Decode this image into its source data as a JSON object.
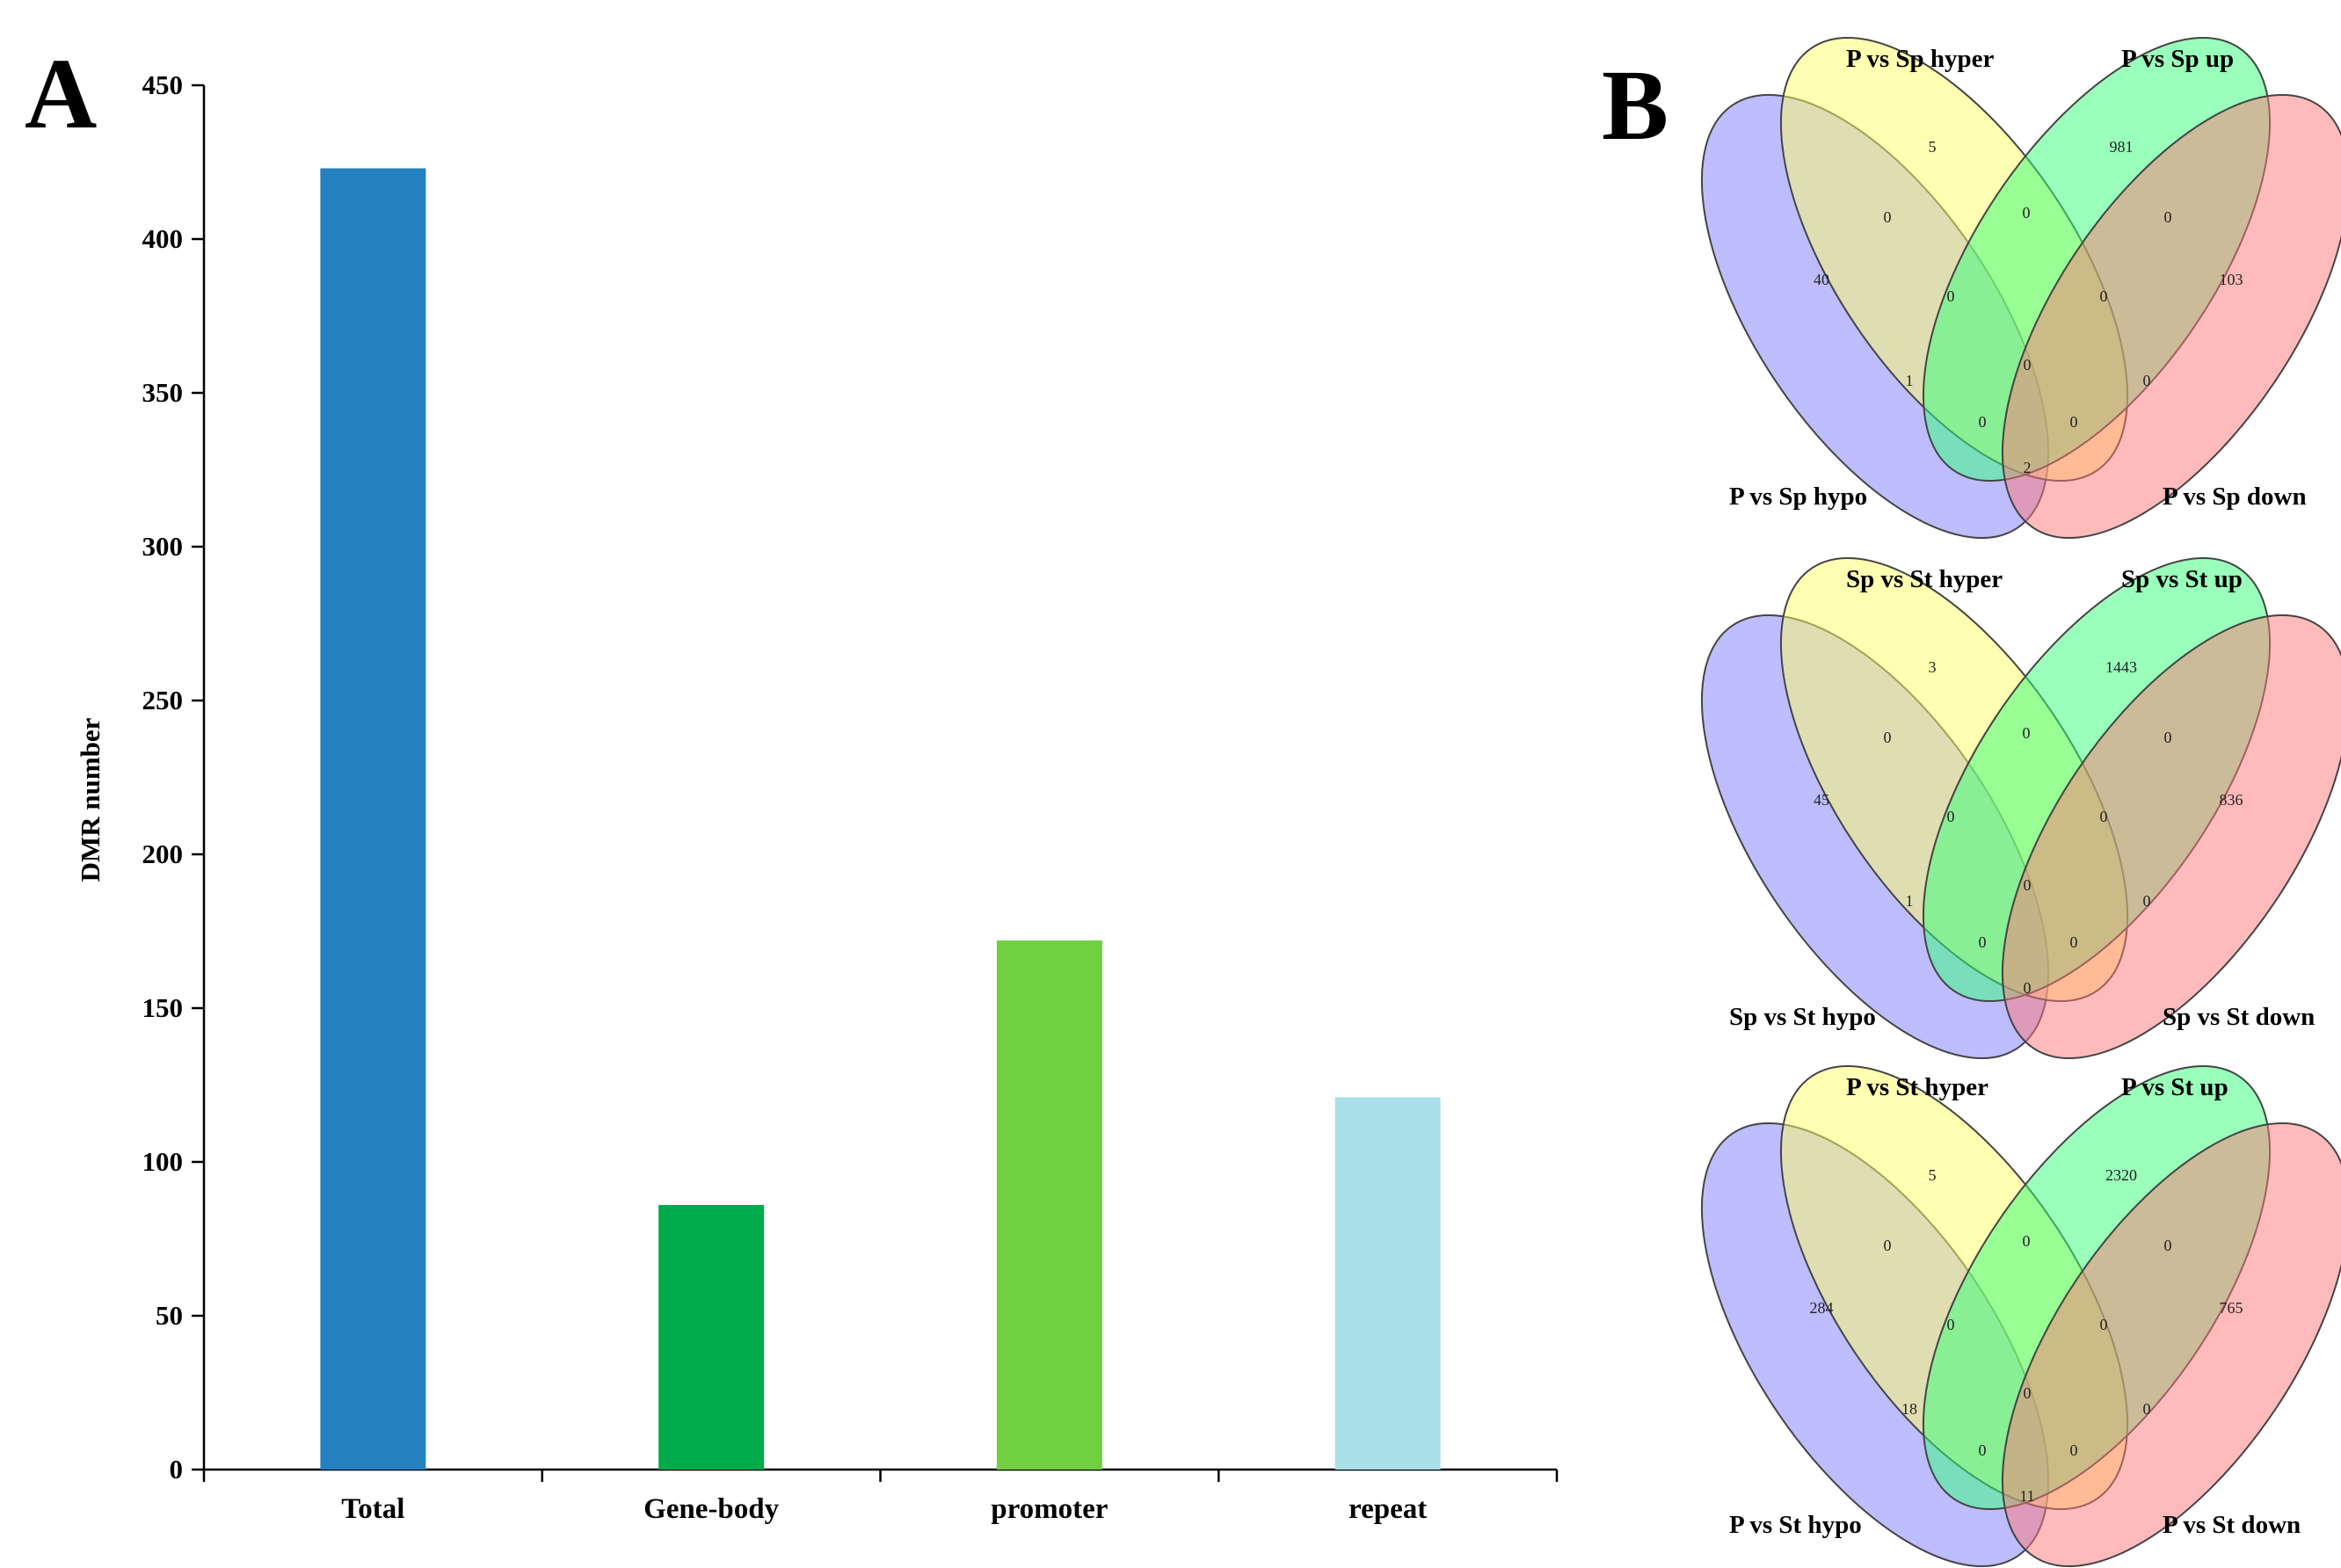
{
  "panels": {
    "a_label": "A",
    "b_label": "B"
  },
  "chart_data": {
    "type": "bar",
    "title": "",
    "xlabel": "",
    "ylabel": "DMR number",
    "ylim": [
      0,
      450
    ],
    "yticks": [
      0,
      50,
      100,
      150,
      200,
      250,
      300,
      350,
      400,
      450
    ],
    "categories": [
      "Total",
      "Gene-body",
      "promoter",
      "repeat"
    ],
    "values": [
      423,
      86,
      172,
      121
    ],
    "colors": [
      "#2480c1",
      "#00ab4b",
      "#70d040",
      "#a8dfe9"
    ]
  },
  "venn": {
    "colors": [
      "#7b7bff",
      "#ffff66",
      "#33ff77",
      "#ff7777"
    ],
    "diagrams": [
      {
        "labels": [
          "P vs Sp hypo",
          "P vs Sp hyper",
          "P vs Sp up",
          "P vs Sp down"
        ],
        "counts": {
          "a": "40",
          "b": "5",
          "c": "981",
          "d": "103",
          "ab": "0",
          "bc": "0",
          "cd": "0",
          "ac": "1",
          "bd": "0",
          "ad": "2",
          "abc": "0",
          "bcd": "0",
          "acd": "0",
          "abd": "0",
          "abcd": "0"
        }
      },
      {
        "labels": [
          "Sp vs St hypo",
          "Sp vs St hyper",
          "Sp vs St up",
          "Sp vs St down"
        ],
        "counts": {
          "a": "45",
          "b": "3",
          "c": "1443",
          "d": "836",
          "ab": "0",
          "bc": "0",
          "cd": "0",
          "ac": "1",
          "bd": "0",
          "ad": "0",
          "abc": "0",
          "bcd": "0",
          "acd": "0",
          "abd": "0",
          "abcd": "0"
        }
      },
      {
        "labels": [
          "P vs St  hypo",
          "P vs St hyper",
          "P vs St up",
          "P vs St down"
        ],
        "counts": {
          "a": "284",
          "b": "5",
          "c": "2320",
          "d": "765",
          "ab": "0",
          "bc": "0",
          "cd": "0",
          "ac": "18",
          "bd": "0",
          "ad": "11",
          "abc": "0",
          "bcd": "0",
          "acd": "0",
          "abd": "0",
          "abcd": "0"
        }
      }
    ]
  }
}
